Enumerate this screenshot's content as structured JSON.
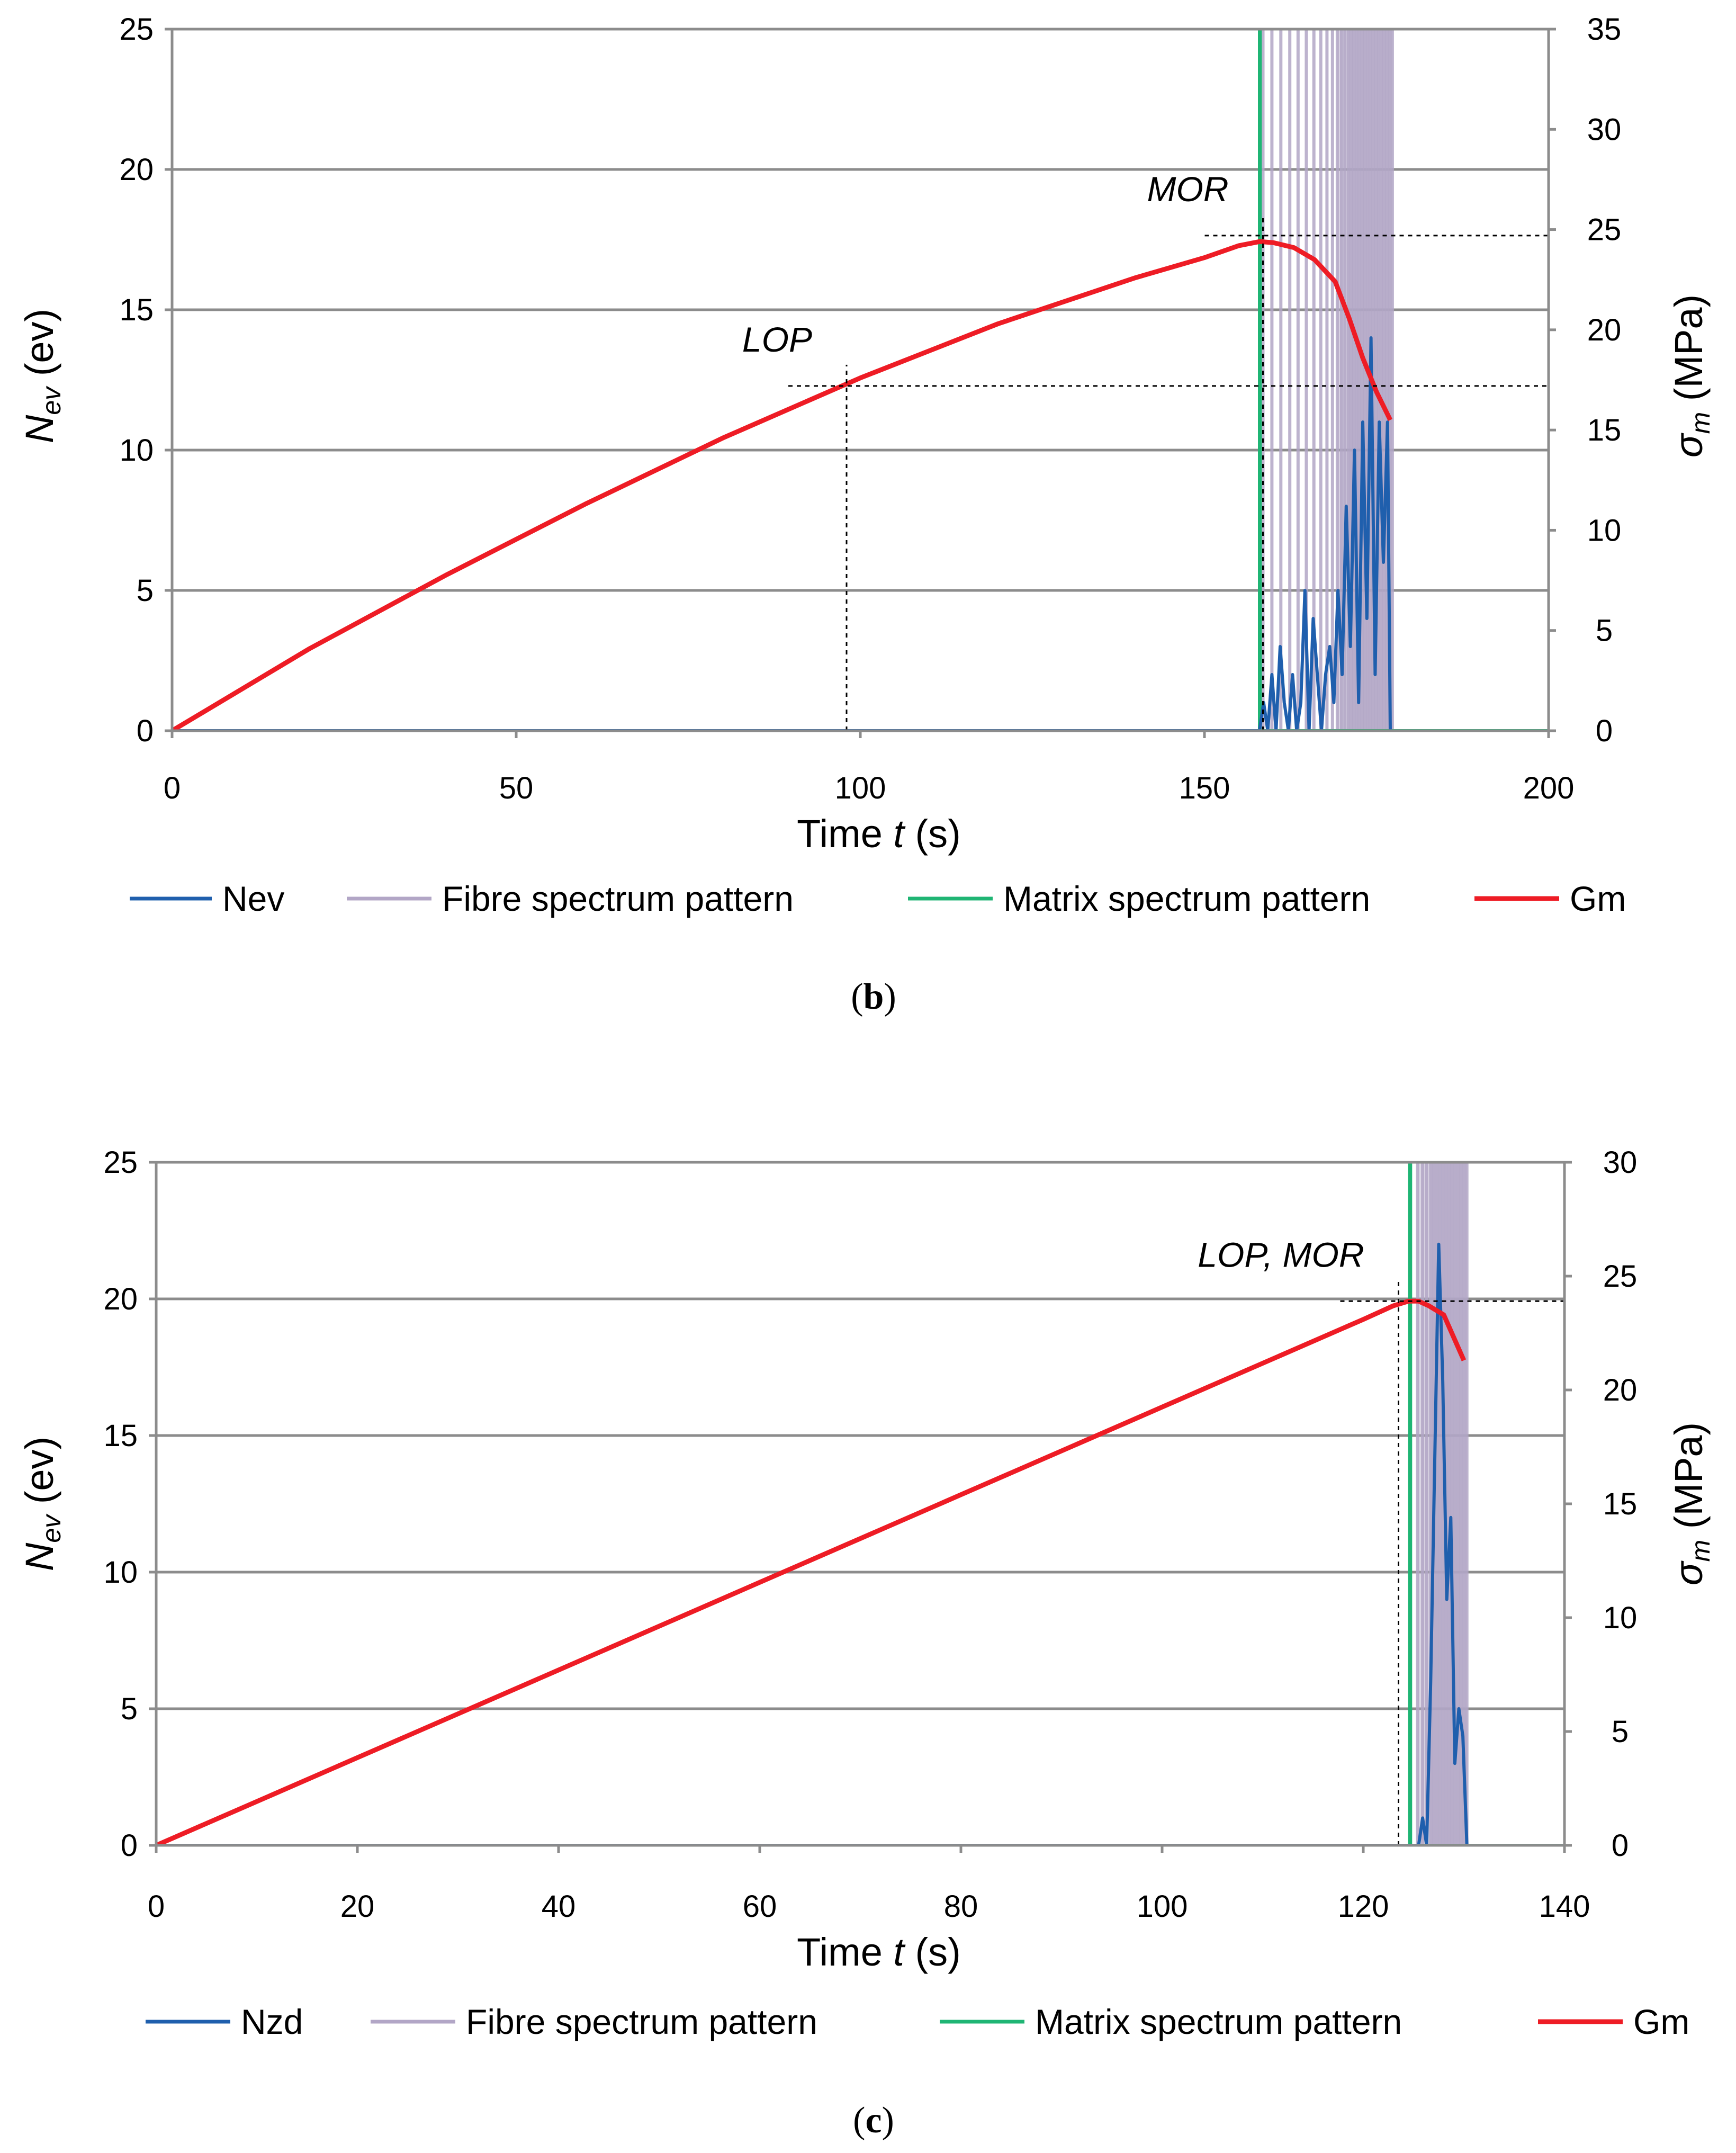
{
  "chart_data": [
    {
      "panel_label": "b",
      "type": "line",
      "xlabel_prefix": "Time ",
      "xlabel_var": "t",
      "xlabel_unit": " (s)",
      "ylabel_var": "N",
      "ylabel_sub": "ev",
      "ylabel_unit": " (ev)",
      "y2label_var": "σ",
      "y2label_sub": "m",
      "y2label_unit": " (MPa)",
      "xlim": [
        0,
        200
      ],
      "ylim": [
        0,
        25
      ],
      "y2lim": [
        0,
        35
      ],
      "x_ticks": [
        "0",
        "50",
        "100",
        "150",
        "200"
      ],
      "y_ticks": [
        "0",
        "5",
        "10",
        "15",
        "20",
        "25"
      ],
      "y2_ticks": [
        "0",
        "5",
        "10",
        "15",
        "20",
        "25",
        "30",
        "35"
      ],
      "annotations": [
        {
          "text": "LOP",
          "x": 98,
          "y2": 17.2
        },
        {
          "text": "MOR",
          "x": 158.5,
          "y2": 24.7
        }
      ],
      "legend": [
        "Nev",
        "Fibre spectrum pattern",
        "Matrix spectrum pattern",
        "Gm"
      ],
      "series": [
        {
          "name": "Nev",
          "axis": "left",
          "x": [
            0,
            158,
            158.6,
            159.2,
            159.8,
            160.4,
            161,
            161.6,
            162.2,
            162.8,
            163.4,
            164,
            164.6,
            165.2,
            165.8,
            166.4,
            167,
            167.6,
            168.2,
            168.8,
            169.4,
            170,
            170.6,
            171.2,
            171.8,
            172.4,
            173,
            173.6,
            174.2,
            174.8,
            175.4,
            176,
            176.6,
            177
          ],
          "y": [
            0,
            0,
            1,
            0,
            2,
            0,
            3,
            1,
            0,
            2,
            0,
            1,
            5,
            0,
            4,
            2,
            0,
            2,
            3,
            1,
            5,
            2,
            8,
            3,
            10,
            1,
            11,
            4,
            14,
            2,
            11,
            6,
            11,
            0
          ]
        },
        {
          "name": "Fibre spectrum pattern",
          "axis": "left",
          "spikes_x": [
            158.5,
            159.8,
            161.1,
            162.4,
            163.6,
            164.8,
            165.9,
            166.9,
            167.8,
            168.6,
            169.3,
            169.9,
            170.4,
            170.9,
            171.3,
            171.7,
            172.1,
            172.5,
            172.9,
            173.3,
            173.7,
            174.1,
            174.5,
            174.9,
            175.3,
            175.7,
            176.1,
            176.5,
            176.9,
            177.3
          ],
          "spike_top": 25
        },
        {
          "name": "Matrix spectrum pattern",
          "axis": "left",
          "x": [
            0,
            158,
            158,
            158.1,
            158.1,
            200
          ],
          "y": [
            0,
            0,
            25,
            25,
            0,
            0
          ]
        },
        {
          "name": "Gm",
          "axis": "right",
          "x": [
            0,
            20,
            40,
            60,
            80,
            100,
            120,
            140,
            150,
            155,
            158,
            160,
            163,
            166,
            169,
            171,
            173,
            175,
            177
          ],
          "y": [
            0,
            4.1,
            7.8,
            11.3,
            14.6,
            17.6,
            20.3,
            22.6,
            23.6,
            24.2,
            24.4,
            24.35,
            24.1,
            23.5,
            22.4,
            20.6,
            18.6,
            16.9,
            15.5
          ]
        }
      ]
    },
    {
      "panel_label": "c",
      "type": "line",
      "xlabel_prefix": "Time ",
      "xlabel_var": "t",
      "xlabel_unit": " (s)",
      "ylabel_var": "N",
      "ylabel_sub": "ev",
      "ylabel_unit": " (ev)",
      "y2label_var": "σ",
      "y2label_sub": "m",
      "y2label_unit": " (MPa)",
      "xlim": [
        0,
        140
      ],
      "ylim": [
        0,
        25
      ],
      "y2lim": [
        0,
        30
      ],
      "x_ticks": [
        "0",
        "20",
        "40",
        "60",
        "80",
        "100",
        "120",
        "140"
      ],
      "y_ticks": [
        "0",
        "5",
        "10",
        "15",
        "20",
        "25"
      ],
      "y2_ticks": [
        "0",
        "5",
        "10",
        "15",
        "20",
        "25",
        "30"
      ],
      "annotations": [
        {
          "text": "LOP, MOR",
          "x": 123.5,
          "y2": 23.9
        }
      ],
      "legend": [
        "Nzd",
        "Fibre spectrum pattern",
        "Matrix spectrum pattern",
        "Gm"
      ],
      "series": [
        {
          "name": "Nzd",
          "axis": "left",
          "x": [
            0,
            125.5,
            125.9,
            126.3,
            126.7,
            127.1,
            127.5,
            127.9,
            128.3,
            128.7,
            129.1,
            129.5,
            129.9,
            130.3
          ],
          "y": [
            0,
            0,
            1,
            0,
            6,
            14,
            22,
            17,
            9,
            12,
            3,
            5,
            4,
            0
          ]
        },
        {
          "name": "Fibre spectrum pattern",
          "axis": "left",
          "spikes_x": [
            125.4,
            125.9,
            126.3,
            126.7,
            127.0,
            127.3,
            127.6,
            127.9,
            128.2,
            128.5,
            128.8,
            129.1,
            129.4,
            129.7,
            130.0,
            130.3
          ],
          "spike_top": 25
        },
        {
          "name": "Matrix spectrum pattern",
          "axis": "left",
          "x": [
            0,
            124.6,
            124.6,
            124.7,
            124.7,
            140
          ],
          "y": [
            0,
            0,
            25,
            25,
            0,
            0
          ]
        },
        {
          "name": "Gm",
          "axis": "right",
          "x": [
            0,
            20,
            40,
            60,
            80,
            100,
            120,
            123,
            124.5,
            125.5,
            126.5,
            128,
            129,
            130
          ],
          "y": [
            0,
            3.85,
            7.7,
            11.55,
            15.4,
            19.25,
            23.1,
            23.7,
            23.9,
            23.9,
            23.7,
            23.3,
            22.3,
            21.3
          ]
        }
      ]
    }
  ]
}
